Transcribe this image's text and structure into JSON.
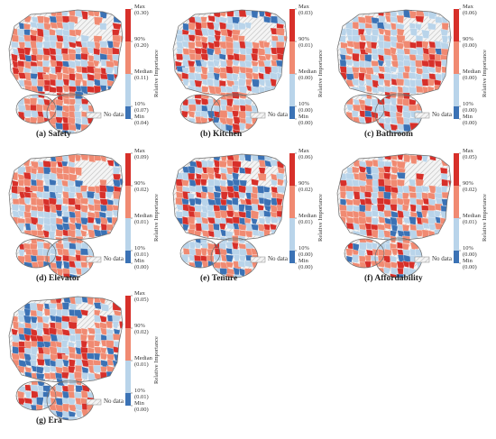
{
  "legend": {
    "axis_title": "Relative Importance",
    "no_data": "No data",
    "level_names": [
      "Max",
      "90%",
      "Median",
      "10%",
      "Min"
    ],
    "colors": {
      "dark_red": "#d7302a",
      "light_red": "#f08a72",
      "light_blue": "#b9d4ea",
      "dark_blue": "#3b72b5",
      "hatch": "#bdbdbd",
      "border": "#6f6f6f"
    }
  },
  "panels": [
    {
      "caption": "(a) Safety",
      "values": [
        "(0.30)",
        "(0.20)",
        "(0.11)",
        "(0.07)",
        "(0.04)"
      ],
      "seed": 11,
      "mix": [
        0.22,
        0.4,
        0.28,
        0.1
      ]
    },
    {
      "caption": "(b) Kitchen",
      "values": [
        "(0.03)",
        "(0.01)",
        "(0.00)",
        "(0.00)",
        "(0.00)"
      ],
      "seed": 23,
      "mix": [
        0.22,
        0.33,
        0.4,
        0.05
      ]
    },
    {
      "caption": "(c) Bathroom",
      "values": [
        "(0.06)",
        "(0.00)",
        "(0.00)",
        "(0.00)",
        "(0.00)"
      ],
      "seed": 37,
      "mix": [
        0.12,
        0.3,
        0.55,
        0.03
      ]
    },
    {
      "caption": "(d) Elevator",
      "values": [
        "(0.09)",
        "(0.02)",
        "(0.01)",
        "(0.01)",
        "(0.00)"
      ],
      "seed": 41,
      "mix": [
        0.15,
        0.4,
        0.3,
        0.15
      ]
    },
    {
      "caption": "(e) Tenure",
      "values": [
        "(0.06)",
        "(0.02)",
        "(0.01)",
        "(0.00)",
        "(0.00)"
      ],
      "seed": 53,
      "mix": [
        0.18,
        0.32,
        0.25,
        0.25
      ]
    },
    {
      "caption": "(f) Affordability",
      "values": [
        "(0.05)",
        "(0.02)",
        "(0.01)",
        "(0.00)",
        "(0.00)"
      ],
      "seed": 67,
      "mix": [
        0.15,
        0.4,
        0.35,
        0.1
      ]
    },
    {
      "caption": "(g) Era",
      "values": [
        "(0.05)",
        "(0.02)",
        "(0.01)",
        "(0.01)",
        "(0.00)"
      ],
      "seed": 79,
      "mix": [
        0.15,
        0.38,
        0.3,
        0.17
      ]
    }
  ]
}
